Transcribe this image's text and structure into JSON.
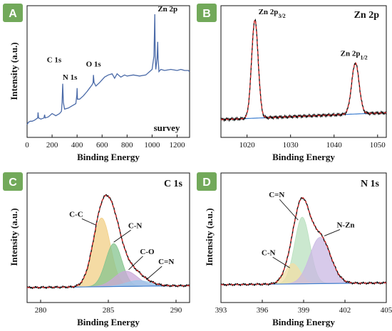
{
  "colors": {
    "badge": "#72a95a",
    "survey_line": "#4a6aa8",
    "exp_line": "#111111",
    "fit_line": "#e03030",
    "bg_line": "#3f7fd0",
    "zn_fit_blue": "#3b86d6",
    "c_cc": "#f2cf86",
    "c_cn": "#86c48f",
    "c_co": "#c9a8d8",
    "c_ceqn": "#9cc7ea",
    "n_ceqn": "#b9e0bf",
    "n_cn": "#f2dfa6",
    "n_nzn": "#c9b8e3"
  },
  "chart_data": [
    {
      "panel": "A",
      "type": "line",
      "title": "",
      "xlabel": "Binding Energy",
      "ylabel": "Intensity (a.u.)",
      "xlim": [
        0,
        1300
      ],
      "xticks": [
        0,
        200,
        400,
        600,
        800,
        1000,
        1200
      ],
      "legend": "survey",
      "annotations": [
        {
          "text": "C 1s",
          "x": 285
        },
        {
          "text": "N 1s",
          "x": 400
        },
        {
          "text": "O 1s",
          "x": 531
        },
        {
          "text": "Zn 2p",
          "x": 1022
        }
      ],
      "series": [
        {
          "x": [
            0,
            10,
            25,
            40,
            60,
            85,
            88,
            92,
            110,
            135,
            140,
            145,
            170,
            200,
            230,
            260,
            275,
            280,
            285,
            290,
            300,
            330,
            360,
            390,
            398,
            400,
            403,
            420,
            450,
            480,
            500,
            520,
            528,
            531,
            536,
            550,
            580,
            620,
            650,
            680,
            700,
            720,
            750,
            780,
            800,
            850,
            900,
            950,
            980,
            1000,
            1015,
            1020,
            1022,
            1025,
            1030,
            1040,
            1045,
            1048,
            1055,
            1070,
            1100,
            1150,
            1200,
            1230,
            1260,
            1290,
            1300
          ],
          "y": [
            0.0,
            0.02,
            0.03,
            0.03,
            0.04,
            0.06,
            0.11,
            0.06,
            0.05,
            0.06,
            0.09,
            0.06,
            0.07,
            0.1,
            0.08,
            0.1,
            0.12,
            0.2,
            0.37,
            0.2,
            0.14,
            0.15,
            0.17,
            0.19,
            0.27,
            0.33,
            0.23,
            0.23,
            0.26,
            0.3,
            0.33,
            0.36,
            0.38,
            0.45,
            0.38,
            0.35,
            0.38,
            0.43,
            0.45,
            0.46,
            0.42,
            0.46,
            0.43,
            0.45,
            0.44,
            0.45,
            0.44,
            0.45,
            0.48,
            0.5,
            0.62,
            0.9,
            1.0,
            0.62,
            0.5,
            0.6,
            0.75,
            0.6,
            0.48,
            0.5,
            0.49,
            0.5,
            0.49,
            0.5,
            0.49,
            0.49,
            0.48
          ]
        }
      ]
    },
    {
      "panel": "B",
      "type": "line",
      "title": "Zn 2p",
      "xlabel": "Binding Energy",
      "ylabel": "",
      "xlim": [
        1014,
        1052
      ],
      "xticks": [
        1020,
        1030,
        1040,
        1050
      ],
      "annotations": [
        {
          "text": "Zn 2p",
          "sub": "3/2",
          "x": 1021.8
        },
        {
          "text": "Zn 2p",
          "sub": "1/2",
          "x": 1044.9
        }
      ],
      "peaks": [
        {
          "center": 1021.8,
          "height": 1.0,
          "width": 0.75
        },
        {
          "center": 1044.9,
          "height": 0.52,
          "width": 0.85
        }
      ],
      "baseline": {
        "start": 0.0,
        "end": 0.07
      }
    },
    {
      "panel": "C",
      "type": "area",
      "title": "C 1s",
      "xlabel": "Binding Energy",
      "ylabel": "Intensity (a.u.)",
      "xlim": [
        279,
        291
      ],
      "xticks": [
        280,
        285,
        290
      ],
      "components": [
        {
          "name": "C-C",
          "center": 284.5,
          "height": 0.72,
          "width": 0.65
        },
        {
          "name": "C-N",
          "center": 285.4,
          "height": 0.45,
          "width": 0.6
        },
        {
          "name": "C-O",
          "center": 286.3,
          "height": 0.16,
          "width": 0.85
        },
        {
          "name": "C=N",
          "center": 287.2,
          "height": 0.06,
          "width": 0.9
        }
      ]
    },
    {
      "panel": "D",
      "type": "area",
      "title": "N 1s",
      "xlabel": "Binding Energy",
      "ylabel": "Intensity (a.u.)",
      "xlim": [
        393,
        405
      ],
      "xticks": [
        393,
        396,
        399,
        402,
        405
      ],
      "components": [
        {
          "name": "C=N",
          "center": 398.9,
          "height": 0.72,
          "width": 0.55
        },
        {
          "name": "C-N",
          "center": 398.2,
          "height": 0.22,
          "width": 0.55
        },
        {
          "name": "N-Zn",
          "center": 400.2,
          "height": 0.5,
          "width": 0.75
        }
      ]
    }
  ],
  "badges": [
    "A",
    "B",
    "C",
    "D"
  ]
}
